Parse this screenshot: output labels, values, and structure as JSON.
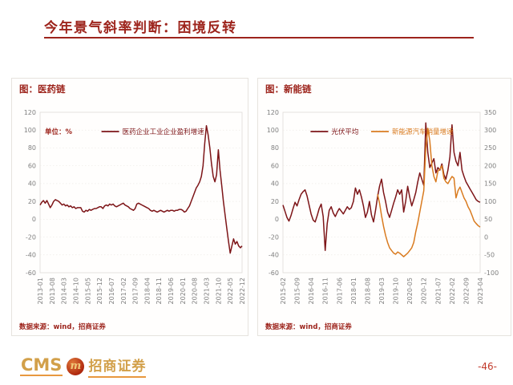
{
  "header": {
    "title": "今年景气斜率判断：困境反转"
  },
  "footer": {
    "brand_cms": "CMS",
    "logo_letter": "m",
    "brand_name": "招商证券",
    "page_number": "-46-"
  },
  "colors": {
    "title_red": "#9d241c",
    "line_dark_red": "#7d1518",
    "line_orange": "#d97b20",
    "axis_gray": "#7f7f7f",
    "brand_gold": "#d2a04a"
  },
  "chart_data": [
    {
      "type": "line",
      "panel_title": "图：医药链",
      "unit_label": "单位：%",
      "source": "数据来源：wind，招商证券",
      "x_start": "2013-01",
      "x_end": "2022-12",
      "x_frequency": "monthly",
      "x_tick_labels": [
        "2013-01",
        "2013-08",
        "2014-03",
        "2014-10",
        "2015-05",
        "2015-12",
        "2016-07",
        "2017-02",
        "2017-09",
        "2018-04",
        "2018-11",
        "2019-06",
        "2020-01",
        "2020-08",
        "2021-03",
        "2021-10",
        "2022-05",
        "2022-12"
      ],
      "ylim_left": [
        -60,
        120
      ],
      "yticks_left": [
        120,
        100,
        80,
        60,
        40,
        20,
        0,
        -20,
        -40,
        -60
      ],
      "grid": "dotted-horizontal",
      "legend_position": "top-center-inside",
      "series": [
        {
          "name": "医药企业工业企业盈利增速",
          "color": "#7d1518",
          "axis": "left",
          "values": [
            16,
            19,
            21,
            18,
            21,
            17,
            13,
            16,
            20,
            22,
            21,
            20,
            18,
            16,
            17,
            15,
            16,
            14,
            15,
            13,
            14,
            12,
            13,
            13,
            13,
            9,
            8,
            10,
            9,
            11,
            10,
            11,
            12,
            12,
            13,
            14,
            14,
            12,
            15,
            16,
            15,
            17,
            16,
            17,
            15,
            14,
            15,
            16,
            17,
            18,
            16,
            15,
            14,
            12,
            11,
            10,
            12,
            17,
            18,
            17,
            16,
            15,
            14,
            13,
            12,
            10,
            9,
            10,
            9,
            8,
            9,
            10,
            9,
            8,
            9,
            10,
            9,
            10,
            10,
            9,
            10,
            10,
            11,
            11,
            10,
            8,
            9,
            12,
            15,
            20,
            25,
            30,
            35,
            38,
            42,
            48,
            60,
            85,
            105,
            95,
            80,
            62,
            48,
            42,
            50,
            78,
            55,
            38,
            20,
            5,
            -10,
            -25,
            -38,
            -30,
            -22,
            -28,
            -25,
            -30,
            -32,
            -30
          ]
        }
      ]
    },
    {
      "type": "line",
      "panel_title": "图：新能链",
      "unit_label": "",
      "source": "数据来源：wind，招商证券",
      "x_start": "2015-02",
      "x_end": "2023-04",
      "x_frequency": "monthly",
      "x_tick_labels": [
        "2015-02",
        "2015-09",
        "2016-04",
        "2016-11",
        "2017-06",
        "2018-01",
        "2018-08",
        "2019-03",
        "2019-10",
        "2020-05",
        "2020-12",
        "2021-07",
        "2022-02",
        "2022-09",
        "2023-04"
      ],
      "ylim_left": [
        -60,
        120
      ],
      "yticks_left": [
        120,
        100,
        80,
        60,
        40,
        20,
        0,
        -20,
        -40,
        -60
      ],
      "ylim_right": [
        -100,
        350
      ],
      "yticks_right": [
        350,
        300,
        250,
        200,
        150,
        100,
        50,
        0,
        -50,
        -100
      ],
      "grid": "dotted-horizontal",
      "legend_position": "top-center-inside",
      "series": [
        {
          "name": "光伏平均",
          "color": "#7d1518",
          "axis": "left",
          "values": [
            16,
            9,
            2,
            -2,
            4,
            12,
            19,
            15,
            22,
            28,
            31,
            33,
            26,
            16,
            6,
            -1,
            -3,
            4,
            12,
            17,
            3,
            -35,
            -5,
            10,
            14,
            7,
            3,
            8,
            12,
            9,
            6,
            10,
            14,
            11,
            13,
            20,
            35,
            28,
            33,
            25,
            15,
            2,
            8,
            20,
            5,
            -3,
            10,
            25,
            37,
            45,
            30,
            20,
            8,
            2,
            10,
            18,
            25,
            33,
            28,
            33,
            8,
            20,
            37,
            25,
            15,
            22,
            30,
            42,
            52,
            45,
            38,
            108,
            75,
            58,
            63,
            68,
            52,
            58,
            55,
            62,
            50,
            45,
            55,
            70,
            106,
            75,
            65,
            60,
            75,
            55,
            48,
            42,
            38,
            34,
            30,
            26,
            22,
            20,
            19
          ]
        },
        {
          "name": "新能源汽车销量增速",
          "color": "#d97b20",
          "axis": "right",
          "values": [
            null,
            null,
            null,
            null,
            null,
            null,
            null,
            null,
            null,
            null,
            null,
            null,
            null,
            null,
            null,
            null,
            null,
            null,
            null,
            null,
            null,
            null,
            null,
            null,
            null,
            null,
            null,
            null,
            null,
            null,
            null,
            null,
            null,
            null,
            null,
            null,
            null,
            null,
            null,
            null,
            null,
            null,
            null,
            null,
            null,
            null,
            null,
            120,
            95,
            60,
            30,
            5,
            -15,
            -30,
            -38,
            -45,
            -48,
            -42,
            -45,
            -50,
            -55,
            -50,
            -45,
            -38,
            -30,
            -15,
            15,
            40,
            70,
            100,
            130,
            250,
            305,
            270,
            200,
            170,
            155,
            185,
            190,
            200,
            165,
            155,
            150,
            160,
            170,
            165,
            110,
            130,
            140,
            125,
            110,
            100,
            85,
            75,
            60,
            45,
            38,
            32,
            28
          ]
        }
      ]
    }
  ]
}
